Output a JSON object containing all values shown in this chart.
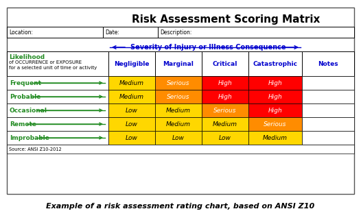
{
  "title": "Risk Assessment Scoring Matrix",
  "subtitle": "Example of a risk assessment rating chart, based on ANSI Z10",
  "severity_label": "Severity of Injury or Illness Consequence",
  "location_label": "Location:",
  "date_label": "Date:",
  "description_label": "Description:",
  "source_label": "Source: ANSI Z10-2012",
  "col_headers": [
    "Negligible",
    "Marginal",
    "Critical",
    "Catastrophic",
    "Notes"
  ],
  "row_labels": [
    "Frequent",
    "Probable",
    "Occasional",
    "Remote",
    "Improbable"
  ],
  "matrix": [
    [
      "Medium",
      "Serious",
      "High",
      "High"
    ],
    [
      "Medium",
      "Serious",
      "High",
      "High"
    ],
    [
      "Low",
      "Medium",
      "Serious",
      "High"
    ],
    [
      "Low",
      "Medium",
      "Medium",
      "Serious"
    ],
    [
      "Low",
      "Low",
      "Low",
      "Medium"
    ]
  ],
  "colors": {
    "Low": "#FFD700",
    "Medium": "#FFD700",
    "Serious": "#FF8C00",
    "High": "#FF0000",
    "": "#FFFFFF"
  },
  "text_colors": {
    "Low": "#000000",
    "Medium": "#000000",
    "Serious": "#FFFFFF",
    "High": "#FFFFFF",
    "": "#000000"
  },
  "likelihood_text_color": "#228B22",
  "col_header_text_color": "#0000CD",
  "severity_arrow_color": "#0000CD",
  "bg_color": "#FFFFFF",
  "outer_border_color": "#555555"
}
